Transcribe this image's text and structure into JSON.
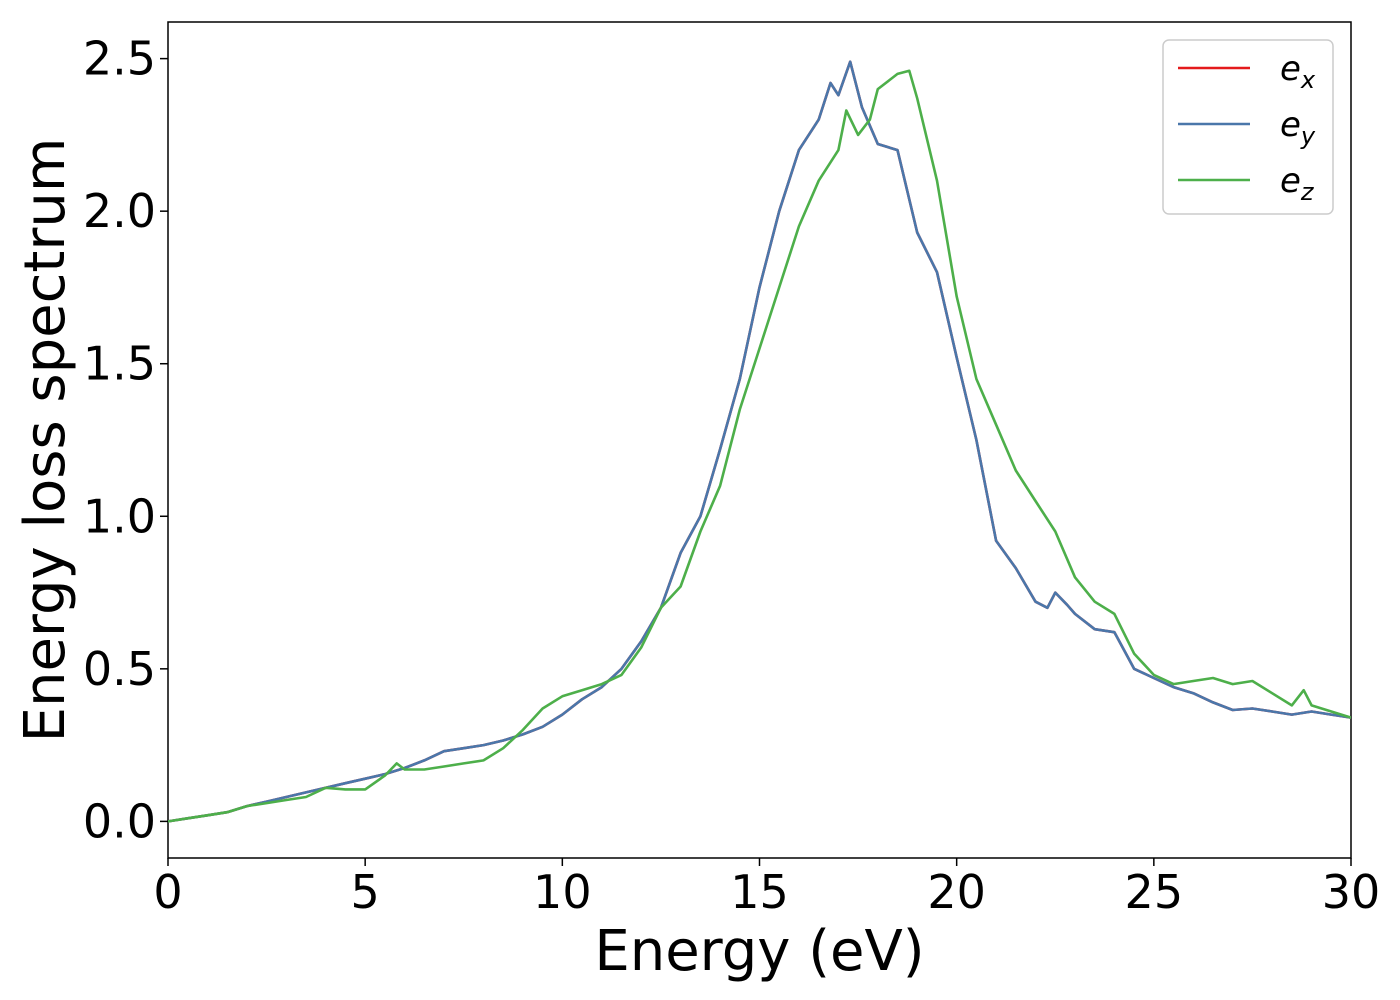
{
  "chart_data": {
    "type": "line",
    "xlabel": "Energy (eV)",
    "ylabel": "Energy loss spectrum",
    "xlim": [
      0,
      30
    ],
    "ylim": [
      -0.12,
      2.62
    ],
    "xticks": [
      "0",
      "5",
      "10",
      "15",
      "20",
      "25",
      "30"
    ],
    "yticks": [
      "0.0",
      "0.5",
      "1.0",
      "1.5",
      "2.0",
      "2.5"
    ],
    "grid": false,
    "legend_position": "top-right",
    "series": [
      {
        "name": "e_x",
        "legend_base": "e",
        "legend_sub": "x",
        "color": "#e41a1c",
        "x": [
          0,
          0.5,
          1,
          1.5,
          2,
          2.5,
          3,
          3.5,
          4,
          4.5,
          5,
          5.5,
          6,
          6.5,
          7,
          7.5,
          8,
          8.5,
          9,
          9.5,
          10,
          10.5,
          11,
          11.5,
          12,
          12.5,
          13,
          13.5,
          14,
          14.5,
          15,
          15.5,
          16,
          16.5,
          16.8,
          17,
          17.3,
          17.6,
          18,
          18.5,
          19,
          19.5,
          20,
          20.5,
          21,
          21.5,
          22,
          22.3,
          22.5,
          22.8,
          23,
          23.5,
          24,
          24.5,
          25,
          25.5,
          26,
          26.5,
          27,
          27.5,
          28,
          28.5,
          29,
          29.5,
          30
        ],
        "values": [
          0.0,
          0.01,
          0.02,
          0.03,
          0.05,
          0.065,
          0.08,
          0.095,
          0.11,
          0.125,
          0.14,
          0.155,
          0.175,
          0.2,
          0.23,
          0.24,
          0.25,
          0.265,
          0.285,
          0.31,
          0.35,
          0.4,
          0.44,
          0.5,
          0.59,
          0.7,
          0.88,
          1.0,
          1.22,
          1.45,
          1.75,
          2.0,
          2.2,
          2.3,
          2.42,
          2.38,
          2.49,
          2.34,
          2.22,
          2.2,
          1.93,
          1.8,
          1.52,
          1.25,
          0.92,
          0.83,
          0.72,
          0.7,
          0.75,
          0.71,
          0.68,
          0.63,
          0.62,
          0.5,
          0.47,
          0.44,
          0.42,
          0.39,
          0.365,
          0.37,
          0.36,
          0.35,
          0.36,
          0.35,
          0.34
        ]
      },
      {
        "name": "e_y",
        "legend_base": "e",
        "legend_sub": "y",
        "color": "#4a77aa",
        "x": [
          0,
          0.5,
          1,
          1.5,
          2,
          2.5,
          3,
          3.5,
          4,
          4.5,
          5,
          5.5,
          6,
          6.5,
          7,
          7.5,
          8,
          8.5,
          9,
          9.5,
          10,
          10.5,
          11,
          11.5,
          12,
          12.5,
          13,
          13.5,
          14,
          14.5,
          15,
          15.5,
          16,
          16.5,
          16.8,
          17,
          17.3,
          17.6,
          18,
          18.5,
          19,
          19.5,
          20,
          20.5,
          21,
          21.5,
          22,
          22.3,
          22.5,
          22.8,
          23,
          23.5,
          24,
          24.5,
          25,
          25.5,
          26,
          26.5,
          27,
          27.5,
          28,
          28.5,
          29,
          29.5,
          30
        ],
        "values": [
          0.0,
          0.01,
          0.02,
          0.03,
          0.05,
          0.065,
          0.08,
          0.095,
          0.11,
          0.125,
          0.14,
          0.155,
          0.175,
          0.2,
          0.23,
          0.24,
          0.25,
          0.265,
          0.285,
          0.31,
          0.35,
          0.4,
          0.44,
          0.5,
          0.59,
          0.7,
          0.88,
          1.0,
          1.22,
          1.45,
          1.75,
          2.0,
          2.2,
          2.3,
          2.42,
          2.38,
          2.49,
          2.34,
          2.22,
          2.2,
          1.93,
          1.8,
          1.52,
          1.25,
          0.92,
          0.83,
          0.72,
          0.7,
          0.75,
          0.71,
          0.68,
          0.63,
          0.62,
          0.5,
          0.47,
          0.44,
          0.42,
          0.39,
          0.365,
          0.37,
          0.36,
          0.35,
          0.36,
          0.35,
          0.34
        ]
      },
      {
        "name": "e_z",
        "legend_base": "e",
        "legend_sub": "z",
        "color": "#4daf4a",
        "x": [
          0,
          0.5,
          1,
          1.5,
          2,
          2.5,
          3,
          3.5,
          4,
          4.5,
          5,
          5.5,
          5.8,
          6,
          6.5,
          7,
          7.5,
          8,
          8.5,
          9,
          9.5,
          10,
          10.5,
          11,
          11.5,
          12,
          12.5,
          13,
          13.5,
          14,
          14.5,
          15,
          15.5,
          16,
          16.5,
          17,
          17.2,
          17.5,
          17.8,
          18,
          18.3,
          18.5,
          18.8,
          19,
          19.5,
          20,
          20.5,
          21,
          21.5,
          22,
          22.5,
          23,
          23.5,
          24,
          24.5,
          25,
          25.5,
          26,
          26.5,
          27,
          27.5,
          28,
          28.5,
          28.8,
          29,
          29.5,
          30
        ],
        "values": [
          0.0,
          0.01,
          0.02,
          0.03,
          0.05,
          0.06,
          0.07,
          0.08,
          0.11,
          0.105,
          0.105,
          0.15,
          0.19,
          0.17,
          0.17,
          0.18,
          0.19,
          0.2,
          0.24,
          0.3,
          0.37,
          0.41,
          0.43,
          0.45,
          0.48,
          0.57,
          0.7,
          0.77,
          0.95,
          1.1,
          1.35,
          1.55,
          1.75,
          1.95,
          2.1,
          2.2,
          2.33,
          2.25,
          2.3,
          2.4,
          2.43,
          2.45,
          2.46,
          2.37,
          2.1,
          1.72,
          1.45,
          1.3,
          1.15,
          1.05,
          0.95,
          0.8,
          0.72,
          0.68,
          0.55,
          0.48,
          0.45,
          0.46,
          0.47,
          0.45,
          0.46,
          0.42,
          0.38,
          0.43,
          0.38,
          0.36,
          0.34
        ]
      }
    ]
  }
}
